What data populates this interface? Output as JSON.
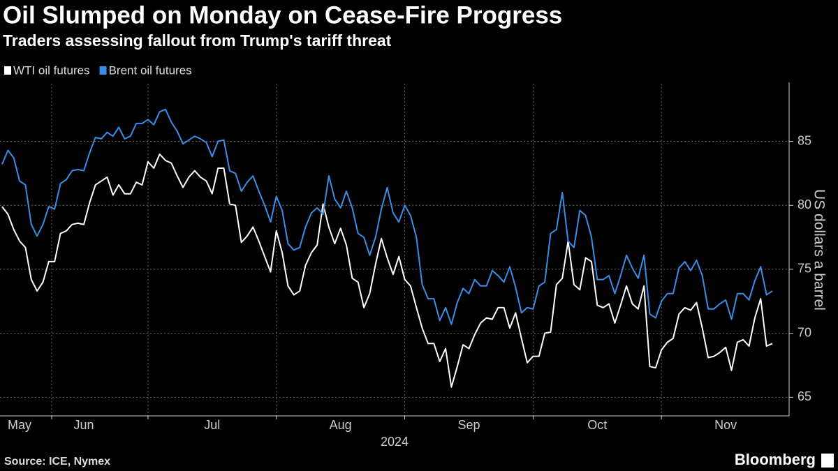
{
  "chart_data": {
    "type": "line",
    "title": "Oil Slumped on Monday on Cease-Fire Progress",
    "subtitle": "Traders assessing fallout from Trump's tariff threat",
    "ylabel": "US dollars a barrel",
    "xlabel": "2024",
    "source": "Source: ICE, Nymex",
    "brand": "Bloomberg",
    "categories": [
      null,
      null,
      null,
      "May",
      null,
      null,
      null,
      null,
      null,
      null,
      null,
      null,
      null,
      null,
      "Jun",
      null,
      null,
      null,
      null,
      null,
      null,
      null,
      null,
      null,
      null,
      null,
      null,
      null,
      null,
      null,
      null,
      null,
      null,
      null,
      null,
      null,
      "Jul",
      null,
      null,
      null,
      null,
      null,
      null,
      null,
      null,
      null,
      null,
      null,
      null,
      null,
      null,
      null,
      null,
      null,
      null,
      null,
      null,
      null,
      "Aug",
      null,
      null,
      null,
      null,
      null,
      null,
      null,
      null,
      null,
      null,
      null,
      null,
      null,
      null,
      null,
      null,
      null,
      null,
      null,
      null,
      null,
      "Sep",
      null,
      null,
      null,
      null,
      null,
      null,
      null,
      null,
      null,
      null,
      null,
      null,
      null,
      null,
      null,
      null,
      null,
      null,
      null,
      null,
      null,
      "Oct",
      null,
      null,
      null,
      null,
      null,
      null,
      null,
      null,
      null,
      null,
      null,
      null,
      null,
      null,
      null,
      null,
      null,
      null,
      null,
      null,
      null,
      "Nov",
      null,
      null,
      null,
      null,
      null,
      null,
      null,
      null
    ],
    "series": [
      {
        "name": "WTI oil futures",
        "color": "#ffffff",
        "values": [
          79.9,
          79.3,
          78.1,
          77.2,
          76.7,
          74.2,
          73.3,
          74.0,
          75.6,
          75.6,
          77.8,
          78.0,
          78.5,
          78.6,
          78.5,
          80.2,
          81.6,
          81.9,
          82.2,
          80.8,
          81.6,
          80.9,
          80.9,
          81.8,
          81.6,
          83.4,
          82.9,
          84.0,
          83.5,
          83.3,
          82.3,
          81.4,
          82.2,
          82.7,
          82.2,
          81.9,
          80.9,
          82.9,
          82.9,
          80.1,
          80.0,
          77.1,
          77.6,
          78.3,
          77.2,
          76.0,
          74.8,
          78.0,
          76.3,
          73.7,
          73.0,
          73.3,
          75.3,
          76.3,
          76.9,
          80.1,
          78.3,
          77.0,
          78.2,
          76.9,
          74.3,
          74.0,
          72.0,
          73.1,
          75.4,
          77.4,
          75.9,
          74.6,
          76.0,
          74.2,
          73.7,
          72.0,
          70.4,
          69.2,
          69.2,
          67.8,
          68.8,
          65.8,
          67.4,
          69.1,
          68.8,
          69.9,
          70.8,
          71.2,
          71.1,
          72.0,
          72.0,
          70.4,
          71.6,
          69.6,
          67.7,
          68.2,
          68.2,
          70.0,
          70.1,
          73.8,
          74.3,
          77.2,
          73.8,
          73.4,
          75.9,
          75.6,
          72.2,
          72.0,
          72.3,
          70.8,
          72.2,
          73.7,
          72.3,
          71.9,
          73.7,
          67.4,
          67.3,
          68.7,
          69.3,
          69.6,
          71.5,
          72.0,
          71.8,
          72.4,
          70.4,
          68.1,
          68.2,
          68.5,
          68.9,
          67.1,
          69.3,
          69.5,
          69.0,
          71.2,
          72.7,
          69.0,
          69.2
        ]
      },
      {
        "name": "Brent oil futures",
        "color": "#3a8ee6",
        "values": [
          83.2,
          84.3,
          83.7,
          81.9,
          81.6,
          78.5,
          77.6,
          78.5,
          79.9,
          79.7,
          81.7,
          82.0,
          82.7,
          82.8,
          82.7,
          84.1,
          85.3,
          85.2,
          85.7,
          85.4,
          86.1,
          85.2,
          85.4,
          86.4,
          86.4,
          86.7,
          86.3,
          87.3,
          87.5,
          86.5,
          85.8,
          84.8,
          85.1,
          85.4,
          85.2,
          84.9,
          83.8,
          85.0,
          85.1,
          82.7,
          82.5,
          81.1,
          81.8,
          82.3,
          81.1,
          80.0,
          78.7,
          80.7,
          79.6,
          77.0,
          76.5,
          76.7,
          78.3,
          79.4,
          79.8,
          79.3,
          82.3,
          80.5,
          79.8,
          81.1,
          79.8,
          77.8,
          77.5,
          76.1,
          77.5,
          79.7,
          81.4,
          79.4,
          78.7,
          80.0,
          79.2,
          77.5,
          73.8,
          72.7,
          72.7,
          71.0,
          72.0,
          70.7,
          72.4,
          73.5,
          73.1,
          74.2,
          73.7,
          73.7,
          74.9,
          74.5,
          74.0,
          75.2,
          73.6,
          71.6,
          72.0,
          71.9,
          73.7,
          74.0,
          77.8,
          78.1,
          81.0,
          77.2,
          76.7,
          79.6,
          79.2,
          77.5,
          74.2,
          74.2,
          74.5,
          73.1,
          74.5,
          76.1,
          75.1,
          74.3,
          76.1,
          71.5,
          71.2,
          72.5,
          73.1,
          73.1,
          75.1,
          75.6,
          74.9,
          75.7,
          74.5,
          71.9,
          71.9,
          72.3,
          72.6,
          71.1,
          73.1,
          73.1,
          72.6,
          74.1,
          75.2,
          73.0,
          73.3
        ]
      }
    ],
    "ylim": [
      63.6,
      89.5
    ],
    "yticks": [
      65,
      70,
      75,
      80,
      85
    ],
    "grid": true,
    "legend": "top-left"
  }
}
